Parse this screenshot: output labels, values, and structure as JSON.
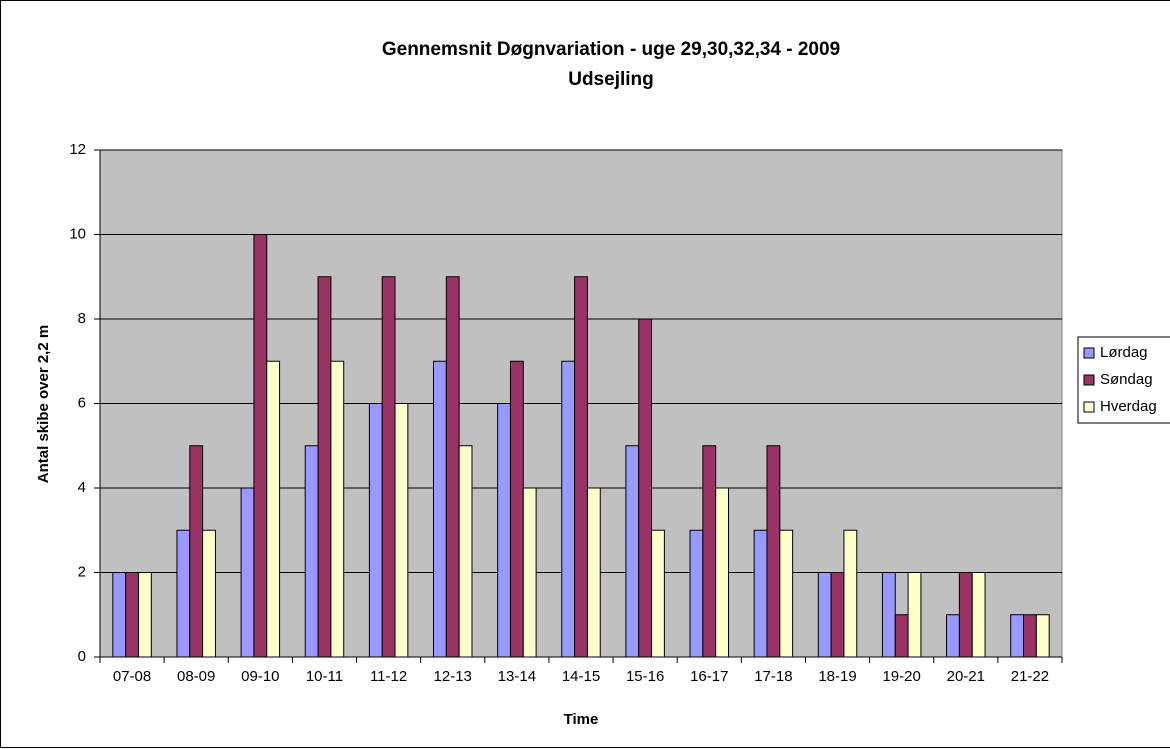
{
  "chart_data": {
    "type": "bar",
    "title": "Gennemsnit Døgnvariation - uge 29,30,32,34 - 2009",
    "subtitle": "Udsejling",
    "x_label": "Time",
    "y_label": "Antal skibe over 2,2 m",
    "categories": [
      "07-08",
      "08-09",
      "09-10",
      "10-11",
      "11-12",
      "12-13",
      "13-14",
      "14-15",
      "15-16",
      "16-17",
      "17-18",
      "18-19",
      "19-20",
      "20-21",
      "21-22"
    ],
    "series": [
      {
        "name": "Lørdag",
        "color": "#9999ff",
        "values": [
          2,
          3,
          4,
          5,
          6,
          7,
          6,
          7,
          5,
          3,
          3,
          2,
          2,
          1,
          1
        ]
      },
      {
        "name": "Søndag",
        "color": "#993366",
        "values": [
          2,
          5,
          10,
          9,
          9,
          9,
          7,
          9,
          8,
          5,
          5,
          2,
          1,
          2,
          1
        ]
      },
      {
        "name": "Hverdag",
        "color": "#ffffcc",
        "values": [
          2,
          3,
          7,
          7,
          6,
          5,
          4,
          4,
          3,
          4,
          3,
          3,
          2,
          2,
          1
        ]
      }
    ],
    "ylim": [
      0,
      12
    ],
    "yticks": [
      0,
      2,
      4,
      6,
      8,
      10,
      12
    ],
    "grid": true,
    "legend": "right"
  }
}
